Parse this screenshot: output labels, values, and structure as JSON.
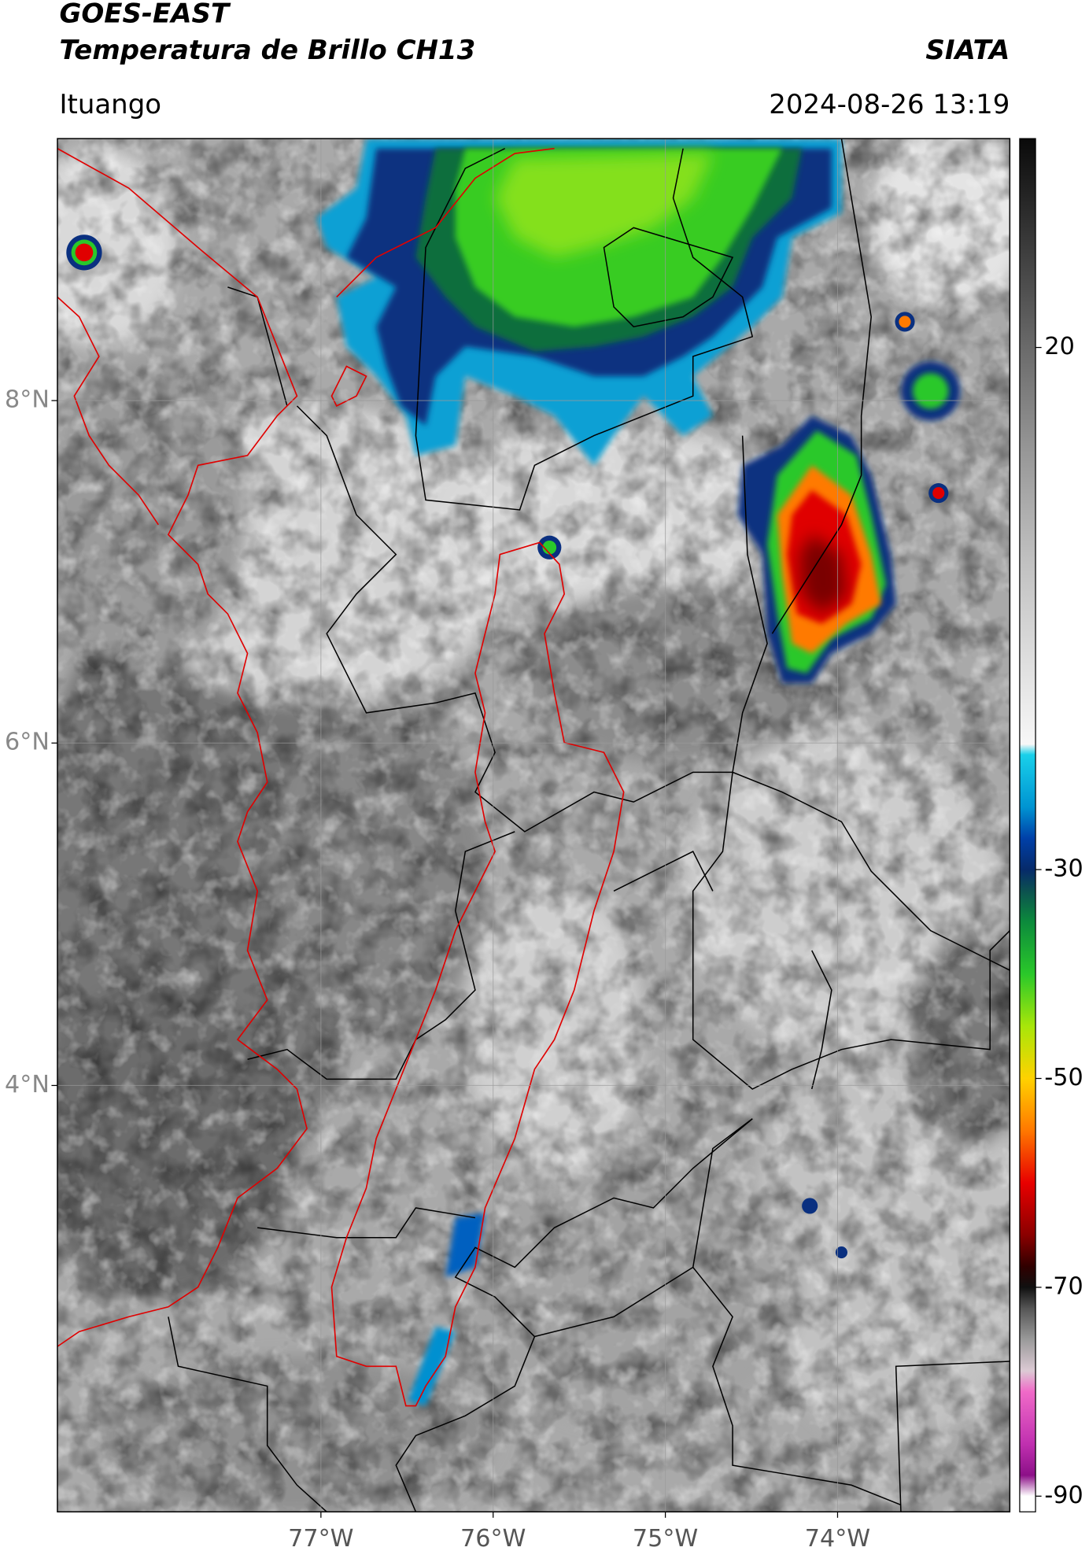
{
  "header": {
    "title": "GOES-EAST",
    "subtitle": "Temperatura de Brillo CH13",
    "source": "SIATA",
    "location": "Ituango",
    "datetime": "2024-08-26 13:19"
  },
  "chart_data": {
    "type": "map",
    "xlim": [
      -78.53,
      -73.0
    ],
    "ylim": [
      1.51,
      9.53
    ],
    "xticks": [
      {
        "value": -77,
        "label": "77°W"
      },
      {
        "value": -76,
        "label": "76°W"
      },
      {
        "value": -75,
        "label": "75°W"
      },
      {
        "value": -74,
        "label": "74°W"
      }
    ],
    "yticks": [
      {
        "value": 8,
        "label": "8°N"
      },
      {
        "value": 6,
        "label": "6°N"
      },
      {
        "value": 4,
        "label": "4°N"
      }
    ],
    "grid": true,
    "colorbar": {
      "lim": [
        -91.5,
        40
      ],
      "ticks": [
        20,
        -30,
        -50,
        -70,
        -90
      ],
      "colormap": [
        {
          "value": 40,
          "color": "#0a0a0a"
        },
        {
          "value": 30,
          "color": "#3a3a3a"
        },
        {
          "value": 20,
          "color": "#6a6a6a"
        },
        {
          "value": 10,
          "color": "#979797"
        },
        {
          "value": 0,
          "color": "#bfbfbf"
        },
        {
          "value": -10,
          "color": "#dedede"
        },
        {
          "value": -18,
          "color": "#f7f7f7"
        },
        {
          "value": -19,
          "color": "#19d0ea"
        },
        {
          "value": -24,
          "color": "#0094d2"
        },
        {
          "value": -27,
          "color": "#0040a8"
        },
        {
          "value": -30,
          "color": "#062a6a"
        },
        {
          "value": -32,
          "color": "#0c5050"
        },
        {
          "value": -35,
          "color": "#0c8a3c"
        },
        {
          "value": -40,
          "color": "#2ac82a"
        },
        {
          "value": -45,
          "color": "#a8e60a"
        },
        {
          "value": -50,
          "color": "#ffd200"
        },
        {
          "value": -55,
          "color": "#ff7800"
        },
        {
          "value": -60,
          "color": "#e80000"
        },
        {
          "value": -65,
          "color": "#8a0000"
        },
        {
          "value": -68,
          "color": "#300000"
        },
        {
          "value": -70,
          "color": "#101010"
        },
        {
          "value": -72,
          "color": "#555555"
        },
        {
          "value": -75,
          "color": "#9a9a9a"
        },
        {
          "value": -78,
          "color": "#dccad4"
        },
        {
          "value": -80,
          "color": "#f06ac8"
        },
        {
          "value": -85,
          "color": "#c030b0"
        },
        {
          "value": -88,
          "color": "#8c1088"
        },
        {
          "value": -90,
          "color": "#ffffff"
        }
      ]
    }
  }
}
